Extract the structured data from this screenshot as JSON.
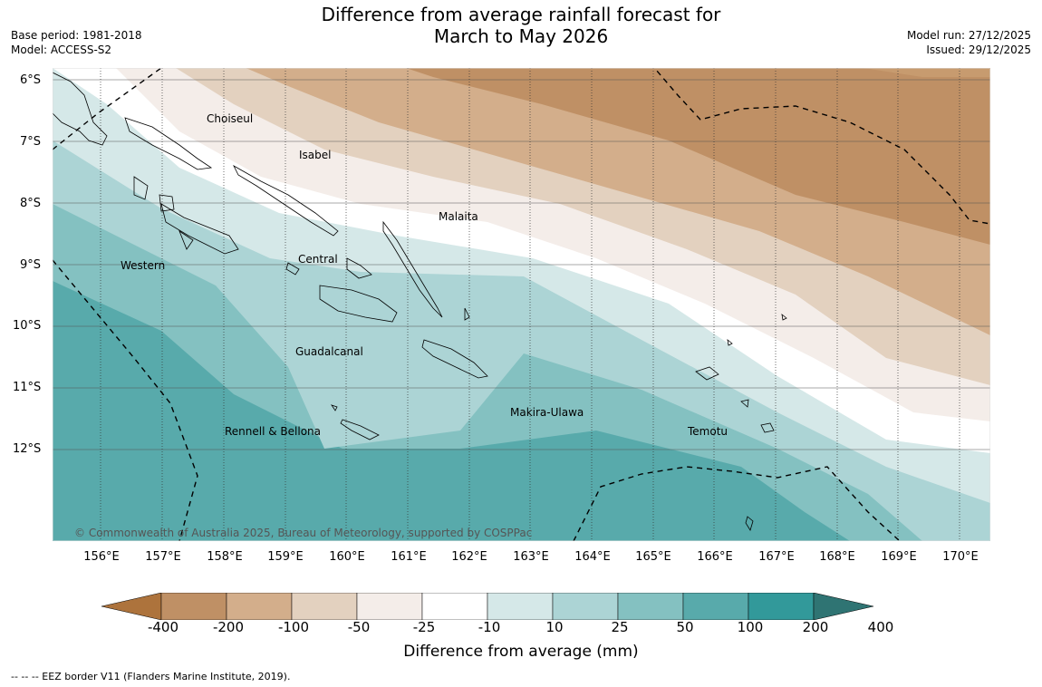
{
  "title": {
    "line1": "Difference from average rainfall forecast for",
    "line2": "March to May 2026"
  },
  "meta": {
    "base_period": "Base period: 1981-2018",
    "model": "Model: ACCESS-S2",
    "model_run": "Model run: 27/12/2025",
    "issued": "Issued: 29/12/2025"
  },
  "map": {
    "lat_labels": [
      "6°S",
      "7°S",
      "8°S",
      "9°S",
      "10°S",
      "11°S",
      "12°S"
    ],
    "lon_labels": [
      "156°E",
      "157°E",
      "158°E",
      "159°E",
      "160°E",
      "161°E",
      "162°E",
      "163°E",
      "164°E",
      "165°E",
      "166°E",
      "167°E",
      "168°E",
      "169°E",
      "170°E"
    ],
    "regions": [
      "Choiseul",
      "Isabel",
      "Malaita",
      "Central",
      "Western",
      "Guadalcanal",
      "Makira-Ulawa",
      "Rennell & Bellona",
      "Temotu"
    ],
    "copyright": "© Commonwealth of Australia 2025, Bureau of Meteorology, supported by COSPPac"
  },
  "colorbar": {
    "ticks": [
      "-400",
      "-200",
      "-100",
      "-50",
      "-25",
      "-10",
      "10",
      "25",
      "50",
      "100",
      "200",
      "400"
    ],
    "colors": [
      "#ad733c",
      "#bf9065",
      "#d3ae8b",
      "#e3d1bf",
      "#f4ede9",
      "#ffffff",
      "#d5e8e8",
      "#acd4d5",
      "#84c1c1",
      "#58aaab",
      "#32999a",
      "#2f7473"
    ],
    "label": "Difference from average (mm)"
  },
  "footer": "-- -- -- EEZ border V11 (Flanders Marine Institute, 2019)."
}
